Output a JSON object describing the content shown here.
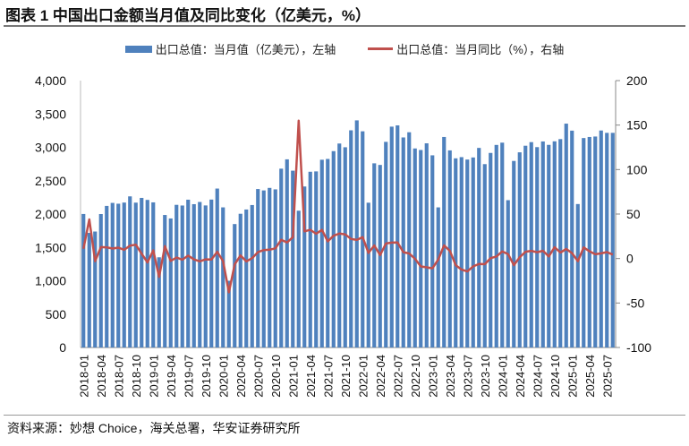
{
  "title": "图表 1 中国出口金额当月值及同比变化（亿美元，%）",
  "source": "资料来源：妙想 Choice，海关总署，华安证券研究所",
  "chart_data": {
    "type": "bar+line",
    "title": "图表 1 中国出口金额当月值及同比变化（亿美元，%）",
    "legend_position": "top-center",
    "left_axis": {
      "ylim": [
        0,
        4000
      ],
      "ticks": [
        "0",
        "500",
        "1,000",
        "1,500",
        "2,000",
        "2,500",
        "3,000",
        "3,500",
        "4,000"
      ]
    },
    "right_axis": {
      "ylim": [
        -100,
        200
      ],
      "ticks": [
        "-100",
        "-50",
        "0",
        "50",
        "100",
        "150",
        "200"
      ]
    },
    "x_tick_labels": [
      "2018-01",
      "2018-04",
      "2018-07",
      "2018-10",
      "2019-01",
      "2019-04",
      "2019-07",
      "2019-10",
      "2020-01",
      "2020-04",
      "2020-07",
      "2020-10",
      "2021-01",
      "2021-04",
      "2021-07",
      "2021-10",
      "2022-01",
      "2022-04",
      "2022-07",
      "2022-10",
      "2023-01",
      "2023-04",
      "2023-07",
      "2023-10",
      "2024-01",
      "2024-04",
      "2024-07",
      "2024-10",
      "2025-01",
      "2025-04",
      "2025-07"
    ],
    "start_month": "2018-01",
    "series": [
      {
        "name": "出口总值：当月值（亿美元），左轴",
        "type": "bar",
        "axis": "left",
        "color": "#4f81bd",
        "values": [
          2001,
          1718,
          1738,
          2000,
          2122,
          2167,
          2155,
          2172,
          2265,
          2171,
          2242,
          2212,
          2175,
          1352,
          1986,
          1934,
          2138,
          2128,
          2215,
          2148,
          2181,
          2129,
          2217,
          2382,
          2100,
          1000,
          1850,
          2004,
          2068,
          2135,
          2375,
          2354,
          2392,
          2370,
          2680,
          2820,
          2650,
          2050,
          2413,
          2634,
          2639,
          2814,
          2826,
          2943,
          3057,
          3001,
          3255,
          3404,
          3240,
          2170,
          2760,
          2736,
          3082,
          3310,
          3329,
          3148,
          3226,
          2983,
          2960,
          3060,
          2880,
          2100,
          3155,
          2954,
          2835,
          2853,
          2817,
          2848,
          2991,
          2748,
          2916,
          3036,
          3070,
          2208,
          2796,
          2925,
          3024,
          3078,
          3003,
          3088,
          3037,
          3090,
          3123,
          3355,
          3250,
          2150,
          3139,
          3155,
          3162,
          3252,
          3217,
          3217
        ]
      },
      {
        "name": "出口总值：当月同比（%），右轴",
        "type": "line",
        "axis": "right",
        "color": "#c0504d",
        "values": [
          11,
          44,
          -3,
          12.9,
          12.6,
          11.2,
          12.2,
          9.8,
          14.5,
          15.6,
          5.4,
          -4.4,
          9.1,
          -20.7,
          14,
          -2.7,
          1.1,
          -1.3,
          3.3,
          -1,
          -3.2,
          -0.9,
          -1.1,
          7.6,
          -3,
          -38,
          -6.6,
          3.5,
          -3.3,
          0.5,
          7.2,
          9.5,
          9.9,
          11.4,
          21.1,
          18.1,
          24,
          154.9,
          30.6,
          32.3,
          27.9,
          32.2,
          19.3,
          25.6,
          28.1,
          27.1,
          22,
          20.9,
          24,
          6.3,
          14.7,
          3.9,
          16.9,
          17.9,
          18,
          7.1,
          5.7,
          -0.3,
          -8.9,
          -9.9,
          -11,
          -1,
          14.8,
          8.5,
          -7.5,
          -12.4,
          -14.5,
          -8.8,
          -6.2,
          -6.4,
          0.5,
          2.3,
          8,
          5,
          -7.5,
          1.5,
          7.6,
          8.6,
          7,
          8.7,
          2.4,
          12.7,
          6.7,
          10.7,
          6,
          -3,
          12.4,
          8.1,
          4.8,
          5.8,
          7.2,
          4.4
        ]
      }
    ]
  }
}
